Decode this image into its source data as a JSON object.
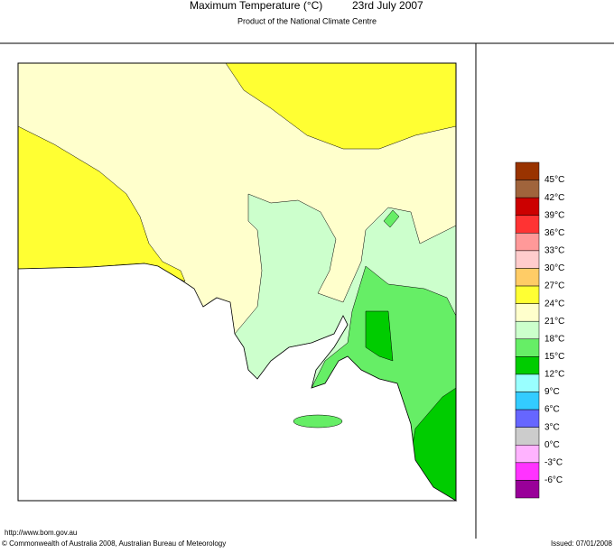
{
  "header": {
    "title": "Maximum Temperature (°C)",
    "date": "23rd July 2007",
    "subtitle": "Product of the National Climate Centre"
  },
  "legend": {
    "labels": [
      "45°C",
      "42°C",
      "39°C",
      "36°C",
      "33°C",
      "30°C",
      "27°C",
      "24°C",
      "21°C",
      "18°C",
      "15°C",
      "12°C",
      "9°C",
      "6°C",
      "3°C",
      "0°C",
      "-3°C",
      "-6°C"
    ],
    "colors": [
      "#993300",
      "#a0643c",
      "#cc0000",
      "#ff3333",
      "#ff9999",
      "#ffcccc",
      "#ffcc66",
      "#ffff33",
      "#ffffcc",
      "#ccffcc",
      "#66ee66",
      "#00cc00",
      "#99ffff",
      "#33ccff",
      "#6666ff",
      "#cccccc",
      "#ffb3ff",
      "#ff33ff",
      "#990099"
    ]
  },
  "footer": {
    "url": "http://www.bom.gov.au",
    "copyright": "© Commonwealth of Australia 2008, Australian Bureau of Meteorology",
    "issued": "Issued: 07/01/2008"
  }
}
